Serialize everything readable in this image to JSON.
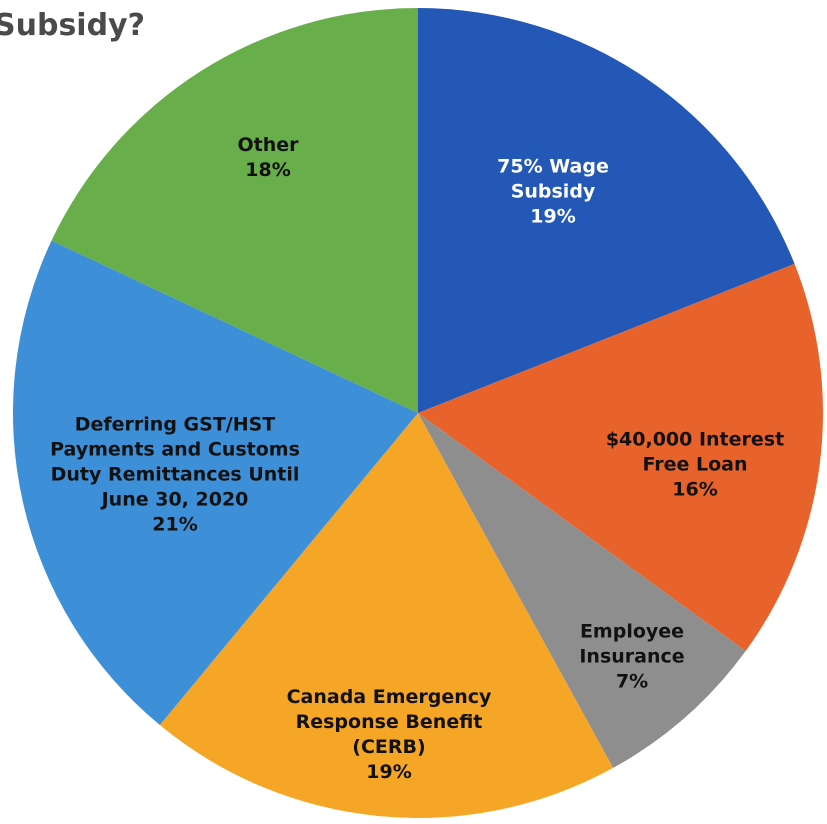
{
  "chart_data": {
    "type": "pie",
    "title": "Subsidy?",
    "categories": [
      "75% Wage Subsidy",
      "$40,000 Interest Free Loan",
      "Employee Insurance",
      "Canada Emergency Response Benefit (CERB)",
      "Deferring GST/HST Payments and Customs Duty Remittances Until June 30, 2020",
      "Other"
    ],
    "values": [
      19,
      16,
      7,
      19,
      21,
      18
    ],
    "value_labels": [
      "19%",
      "16%",
      "7%",
      "19%",
      "21%",
      "18%"
    ],
    "colors": [
      "#2358b6",
      "#e8622c",
      "#8e8e8e",
      "#f5a627",
      "#3d8fd7",
      "#68ae4a"
    ]
  }
}
